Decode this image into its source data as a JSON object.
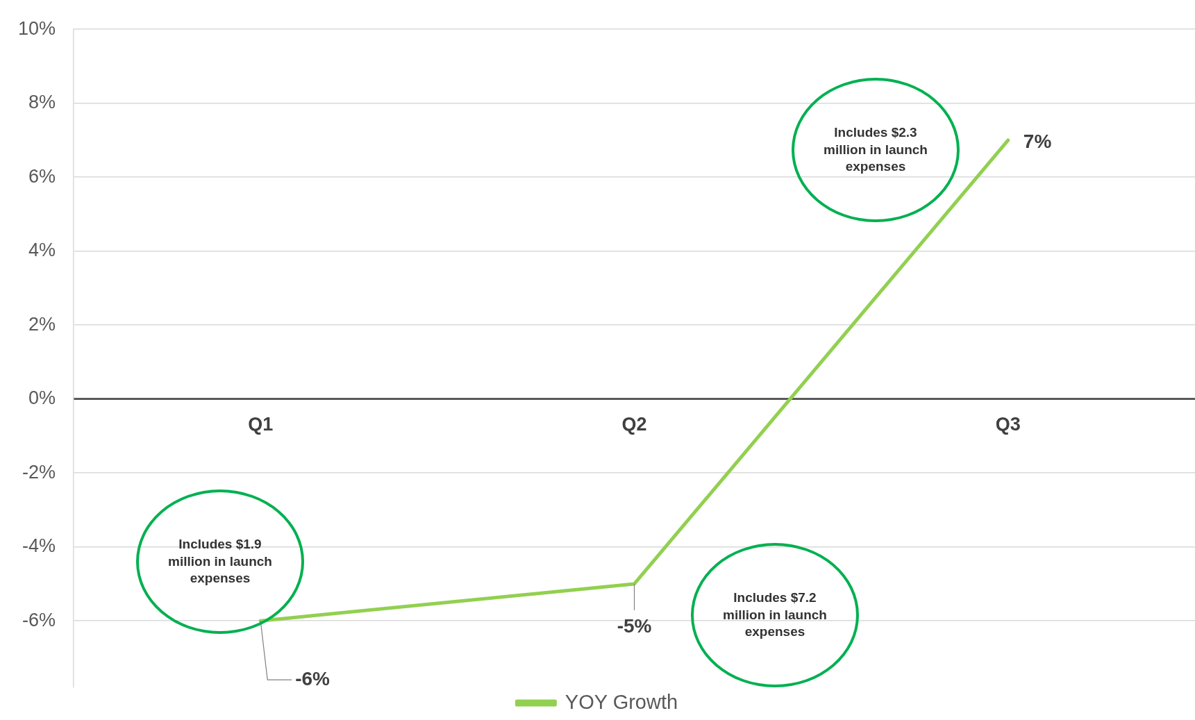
{
  "chart_data": {
    "type": "line",
    "categories": [
      "Q1",
      "Q2",
      "Q3"
    ],
    "series": [
      {
        "name": "YOY Growth",
        "color": "#92d050",
        "values": [
          -6,
          -5,
          7
        ]
      }
    ],
    "value_labels": [
      "-6%",
      "-5%",
      "7%"
    ],
    "ylim": [
      -7.8,
      10
    ],
    "yticks": [
      {
        "value": -6,
        "label": "-6%"
      },
      {
        "value": -4,
        "label": "-4%"
      },
      {
        "value": -2,
        "label": "-2%"
      },
      {
        "value": 0,
        "label": "0%"
      },
      {
        "value": 2,
        "label": "2%"
      },
      {
        "value": 4,
        "label": "4%"
      },
      {
        "value": 6,
        "label": "6%"
      },
      {
        "value": 8,
        "label": "8%"
      },
      {
        "value": 10,
        "label": "10%"
      }
    ],
    "grid": "y",
    "legend": "bottom",
    "marker": "none",
    "line_style": "solid",
    "annotations": [
      "Includes $1.9 million in launch expenses",
      "Includes $2.3 million in launch expenses",
      "Includes $7.2 million in launch expenses"
    ]
  }
}
